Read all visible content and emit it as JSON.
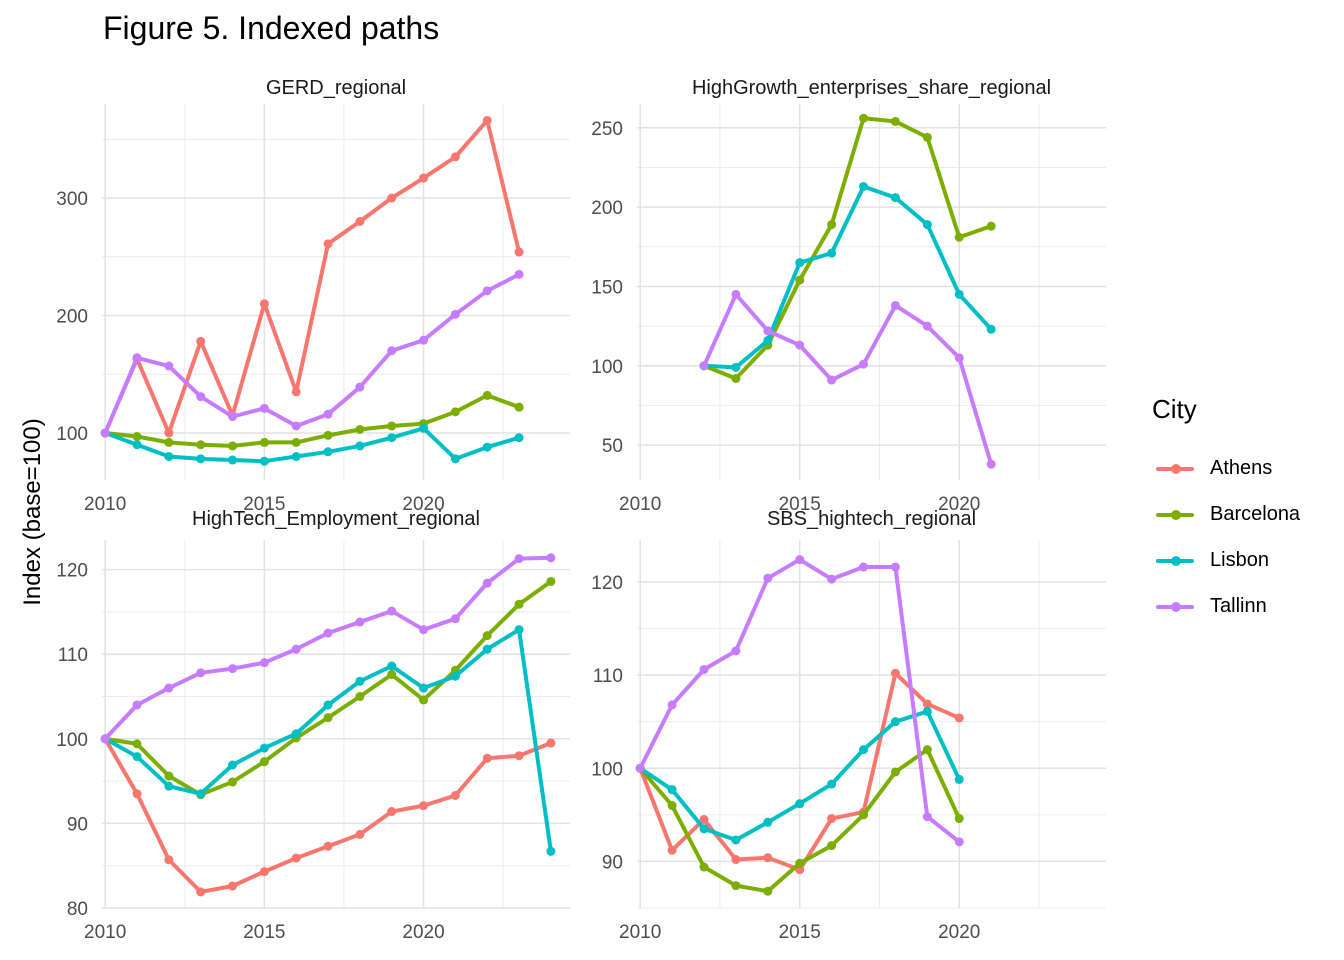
{
  "title": "Figure 5. Indexed paths",
  "ylabel": "Index (base=100)",
  "legend": {
    "title": "City",
    "placement": "right",
    "items": [
      {
        "label": "Athens",
        "color": "#F8766D"
      },
      {
        "label": "Barcelona",
        "color": "#7CAE00"
      },
      {
        "label": "Lisbon",
        "color": "#00BFC4"
      },
      {
        "label": "Tallinn",
        "color": "#C77CFF"
      }
    ]
  },
  "chart_data": [
    {
      "type": "line",
      "title": "GERD_regional",
      "xlim": [
        2009.9,
        2024.6
      ],
      "ylim": [
        60,
        380
      ],
      "xticks": [
        2010,
        2015,
        2020
      ],
      "yticks": [
        100,
        200,
        300
      ],
      "grid": true,
      "series": [
        {
          "name": "Athens",
          "x": [
            2010,
            2011,
            2012,
            2013,
            2014,
            2015,
            2016,
            2017,
            2018,
            2019,
            2020,
            2021,
            2022,
            2023
          ],
          "values": [
            100,
            163,
            100,
            178,
            115,
            210,
            135,
            261,
            280,
            300,
            317,
            335,
            366,
            254
          ]
        },
        {
          "name": "Barcelona",
          "x": [
            2010,
            2011,
            2012,
            2013,
            2014,
            2015,
            2016,
            2017,
            2018,
            2019,
            2020,
            2021,
            2022,
            2023
          ],
          "values": [
            100,
            97,
            92,
            90,
            89,
            92,
            92,
            98,
            103,
            106,
            108,
            118,
            132,
            122
          ]
        },
        {
          "name": "Lisbon",
          "x": [
            2010,
            2011,
            2012,
            2013,
            2014,
            2015,
            2016,
            2017,
            2018,
            2019,
            2020,
            2021,
            2022,
            2023
          ],
          "values": [
            100,
            90,
            80,
            78,
            77,
            76,
            80,
            84,
            89,
            96,
            104,
            78,
            88,
            96
          ]
        },
        {
          "name": "Tallinn",
          "x": [
            2010,
            2011,
            2012,
            2013,
            2014,
            2015,
            2016,
            2017,
            2018,
            2019,
            2020,
            2021,
            2022,
            2023
          ],
          "values": [
            100,
            164,
            157,
            131,
            114,
            121,
            106,
            116,
            139,
            170,
            179,
            201,
            221,
            235
          ]
        }
      ]
    },
    {
      "type": "line",
      "title": "HighGrowth_enterprises_share_regional",
      "xlim": [
        2009.9,
        2024.6
      ],
      "ylim": [
        28,
        265
      ],
      "xticks": [
        2010,
        2015,
        2020
      ],
      "yticks": [
        50,
        100,
        150,
        200,
        250
      ],
      "grid": true,
      "series": [
        {
          "name": "Barcelona",
          "x": [
            2012,
            2013,
            2014,
            2015,
            2016,
            2017,
            2018,
            2019,
            2020,
            2021
          ],
          "values": [
            100,
            92,
            113,
            154,
            189,
            256,
            254,
            244,
            181,
            188
          ]
        },
        {
          "name": "Lisbon",
          "x": [
            2012,
            2013,
            2014,
            2015,
            2016,
            2017,
            2018,
            2019,
            2020,
            2021
          ],
          "values": [
            100,
            99,
            116,
            165,
            171,
            213,
            206,
            189,
            145,
            123
          ]
        },
        {
          "name": "Tallinn",
          "x": [
            2012,
            2013,
            2014,
            2015,
            2016,
            2017,
            2018,
            2019,
            2020,
            2021
          ],
          "values": [
            100,
            145,
            122,
            113,
            91,
            101,
            138,
            125,
            105,
            38
          ]
        }
      ]
    },
    {
      "type": "line",
      "title": "HighTech_Employment_regional",
      "xlim": [
        2009.9,
        2024.6
      ],
      "ylim": [
        80,
        123.5
      ],
      "xticks": [
        2010,
        2015,
        2020
      ],
      "yticks": [
        80,
        90,
        100,
        110,
        120
      ],
      "grid": true,
      "series": [
        {
          "name": "Athens",
          "x": [
            2010,
            2011,
            2012,
            2013,
            2014,
            2015,
            2016,
            2017,
            2018,
            2019,
            2020,
            2021,
            2022,
            2023,
            2024
          ],
          "values": [
            100,
            93.5,
            85.7,
            81.9,
            82.6,
            84.3,
            85.9,
            87.3,
            88.7,
            91.4,
            92.1,
            93.3,
            97.7,
            98.0,
            99.5
          ]
        },
        {
          "name": "Barcelona",
          "x": [
            2010,
            2011,
            2012,
            2013,
            2014,
            2015,
            2016,
            2017,
            2018,
            2019,
            2020,
            2021,
            2022,
            2023,
            2024
          ],
          "values": [
            100,
            99.4,
            95.6,
            93.4,
            94.9,
            97.3,
            100.1,
            102.5,
            105.0,
            107.6,
            104.6,
            108.1,
            112.2,
            115.9,
            118.6
          ]
        },
        {
          "name": "Lisbon",
          "x": [
            2010,
            2011,
            2012,
            2013,
            2014,
            2015,
            2016,
            2017,
            2018,
            2019,
            2020,
            2021,
            2022,
            2023,
            2024
          ],
          "values": [
            100,
            97.9,
            94.4,
            93.5,
            96.9,
            98.9,
            100.6,
            104.0,
            106.8,
            108.6,
            106.0,
            107.4,
            110.6,
            112.9,
            86.7
          ]
        },
        {
          "name": "Tallinn",
          "x": [
            2010,
            2011,
            2012,
            2013,
            2014,
            2015,
            2016,
            2017,
            2018,
            2019,
            2020,
            2021,
            2022,
            2023,
            2024
          ],
          "values": [
            100,
            104.0,
            106.0,
            107.8,
            108.3,
            109.0,
            110.6,
            112.5,
            113.8,
            115.1,
            112.9,
            114.2,
            118.4,
            121.3,
            121.4
          ]
        }
      ]
    },
    {
      "type": "line",
      "title": "SBS_hightech_regional",
      "xlim": [
        2009.9,
        2024.6
      ],
      "ylim": [
        85,
        124.5
      ],
      "xticks": [
        2010,
        2015,
        2020
      ],
      "yticks": [
        90,
        100,
        110,
        120
      ],
      "grid": true,
      "series": [
        {
          "name": "Athens",
          "x": [
            2010,
            2011,
            2012,
            2013,
            2014,
            2015,
            2016,
            2017,
            2018,
            2019,
            2020
          ],
          "values": [
            100,
            91.2,
            94.5,
            90.2,
            90.4,
            89.1,
            94.6,
            95.3,
            110.2,
            106.9,
            105.4
          ]
        },
        {
          "name": "Barcelona",
          "x": [
            2010,
            2011,
            2012,
            2013,
            2014,
            2015,
            2016,
            2017,
            2018,
            2019,
            2020
          ],
          "values": [
            100,
            96.0,
            89.4,
            87.4,
            86.8,
            89.8,
            91.7,
            95.0,
            99.6,
            102.0,
            94.6
          ]
        },
        {
          "name": "Lisbon",
          "x": [
            2010,
            2011,
            2012,
            2013,
            2014,
            2015,
            2016,
            2017,
            2018,
            2019,
            2020
          ],
          "values": [
            100,
            97.7,
            93.5,
            92.3,
            94.2,
            96.2,
            98.3,
            102.0,
            105.0,
            106.1,
            98.8
          ]
        },
        {
          "name": "Tallinn",
          "x": [
            2010,
            2011,
            2012,
            2013,
            2014,
            2015,
            2016,
            2017,
            2018,
            2019,
            2020
          ],
          "values": [
            100,
            106.8,
            110.6,
            112.6,
            120.4,
            122.4,
            120.3,
            121.6,
            121.6,
            94.8,
            92.1
          ]
        }
      ]
    }
  ]
}
